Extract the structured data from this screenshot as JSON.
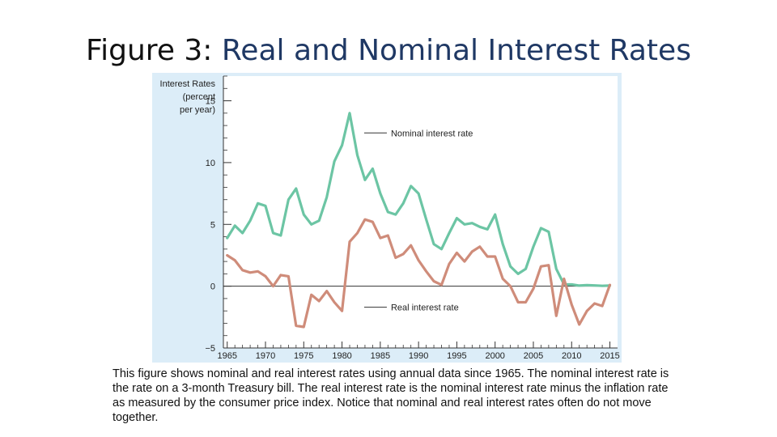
{
  "slide": {
    "title_prefix": "Figure 3:",
    "title_main": "Real and Nominal Interest Rates",
    "caption": "This figure shows nominal and real interest rates using annual data since 1965. The nominal interest rate is the rate on a 3-month Treasury bill. The real interest rate is the nominal interest rate minus the inflation rate as measured by the consumer price index. Notice that nominal and real interest rates often do not move together."
  },
  "colors": {
    "panel_bg": "#dcedf8",
    "plot_bg": "#ffffff",
    "nominal": "#6cc5a4",
    "real": "#cf8c7a",
    "axis": "#333333"
  },
  "chart_data": {
    "type": "line",
    "ylabel_lines": [
      "Interest Rates",
      "(percent",
      "per year)"
    ],
    "xlim": [
      1964.5,
      2016
    ],
    "ylim": [
      -5,
      17
    ],
    "x_ticks": [
      1965,
      1970,
      1975,
      1980,
      1985,
      1990,
      1995,
      2000,
      2005,
      2010,
      2015
    ],
    "y_ticks": [
      -5,
      0,
      5,
      10,
      15
    ],
    "y_tick_labels": [
      "−5",
      "0",
      "5",
      "10",
      "15"
    ],
    "zero_line": true,
    "grid": false,
    "series": [
      {
        "name": "Nominal interest rate",
        "x": [
          1965,
          1966,
          1967,
          1968,
          1969,
          1970,
          1971,
          1972,
          1973,
          1974,
          1975,
          1976,
          1977,
          1978,
          1979,
          1980,
          1981,
          1982,
          1983,
          1984,
          1985,
          1986,
          1987,
          1988,
          1989,
          1990,
          1991,
          1992,
          1993,
          1994,
          1995,
          1996,
          1997,
          1998,
          1999,
          2000,
          2001,
          2002,
          2003,
          2004,
          2005,
          2006,
          2007,
          2008,
          2009,
          2010,
          2011,
          2012,
          2013,
          2014,
          2015
        ],
        "values": [
          3.9,
          4.9,
          4.3,
          5.3,
          6.7,
          6.5,
          4.3,
          4.1,
          7.0,
          7.9,
          5.8,
          5.0,
          5.3,
          7.2,
          10.1,
          11.4,
          14.0,
          10.6,
          8.6,
          9.5,
          7.5,
          6.0,
          5.8,
          6.7,
          8.1,
          7.5,
          5.4,
          3.4,
          3.0,
          4.3,
          5.5,
          5.0,
          5.1,
          4.8,
          4.6,
          5.8,
          3.4,
          1.6,
          1.0,
          1.4,
          3.2,
          4.7,
          4.4,
          1.4,
          0.15,
          0.14,
          0.05,
          0.09,
          0.06,
          0.03,
          0.05
        ]
      },
      {
        "name": "Real interest rate",
        "x": [
          1965,
          1966,
          1967,
          1968,
          1969,
          1970,
          1971,
          1972,
          1973,
          1974,
          1975,
          1976,
          1977,
          1978,
          1979,
          1980,
          1981,
          1982,
          1983,
          1984,
          1985,
          1986,
          1987,
          1988,
          1989,
          1990,
          1991,
          1992,
          1993,
          1994,
          1995,
          1996,
          1997,
          1998,
          1999,
          2000,
          2001,
          2002,
          2003,
          2004,
          2005,
          2006,
          2007,
          2008,
          2009,
          2010,
          2011,
          2012,
          2013,
          2014,
          2015
        ],
        "values": [
          2.5,
          2.1,
          1.3,
          1.1,
          1.2,
          0.8,
          0.0,
          0.9,
          0.8,
          -3.2,
          -3.3,
          -0.7,
          -1.2,
          -0.4,
          -1.3,
          -2.0,
          3.6,
          4.3,
          5.4,
          5.2,
          3.9,
          4.1,
          2.3,
          2.6,
          3.3,
          2.1,
          1.2,
          0.4,
          0.1,
          1.8,
          2.7,
          2.0,
          2.8,
          3.2,
          2.4,
          2.4,
          0.6,
          0.0,
          -1.3,
          -1.3,
          -0.2,
          1.6,
          1.7,
          -2.4,
          0.6,
          -1.5,
          -3.1,
          -2.0,
          -1.4,
          -1.6,
          0.1
        ]
      }
    ],
    "annotations": [
      {
        "text": "Nominal interest rate",
        "x": 1983,
        "y": 12.4,
        "series": 0
      },
      {
        "text": "Real interest rate",
        "x": 1983,
        "y": -1.7,
        "series": 1
      }
    ]
  }
}
